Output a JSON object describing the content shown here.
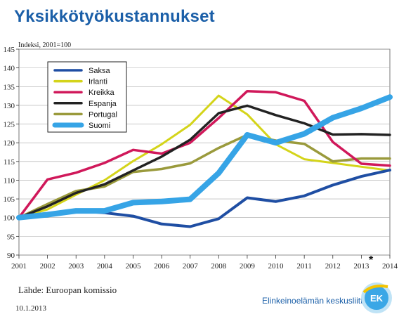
{
  "header": {
    "title": "Yksikkötyökustannukset"
  },
  "footer": {
    "source": "Lähde: Euroopan komissio",
    "date": "10.1.2013",
    "organization": "Elinkeinoelämän keskusliitto",
    "logo_text": "EK",
    "forecast_marker": "*"
  },
  "colors": {
    "title": "#1b5fa8",
    "saksa": "#1f4ea3",
    "irlanti": "#d4d41a",
    "kreikka": "#d0185a",
    "espanja": "#222222",
    "portugal": "#9a9a3c",
    "suomi": "#36a4e6"
  },
  "chart_data": {
    "type": "line",
    "title": "Yksikkötyökustannukset",
    "ylabel": "Indeksi, 2001=100",
    "xlabel": "",
    "ylim": [
      90,
      145
    ],
    "yticks": [
      90,
      95,
      100,
      105,
      110,
      115,
      120,
      125,
      130,
      135,
      140,
      145
    ],
    "grid": true,
    "legend_position": "top-left",
    "x": [
      "2001",
      "2002",
      "2003",
      "2004",
      "2005",
      "2006",
      "2007",
      "2008",
      "2009",
      "2010",
      "2011",
      "2012",
      "2013",
      "2014"
    ],
    "series": [
      {
        "name": "Saksa",
        "color": "#1f4ea3",
        "values": [
          100,
          100.8,
          101.8,
          101.3,
          100.4,
          98.3,
          97.6,
          99.7,
          105.3,
          104.3,
          105.8,
          108.7,
          111.0,
          112.7
        ]
      },
      {
        "name": "Irlanti",
        "color": "#d4d41a",
        "values": [
          100,
          102.2,
          106.1,
          110.0,
          115.1,
          119.6,
          124.8,
          132.6,
          127.6,
          119.6,
          115.6,
          114.6,
          113.6,
          112.6
        ]
      },
      {
        "name": "Kreikka",
        "color": "#d0185a",
        "values": [
          100,
          110.2,
          112.0,
          114.6,
          118.1,
          117.1,
          120.0,
          126.6,
          133.8,
          133.5,
          131.2,
          120.2,
          114.4,
          113.9
        ]
      },
      {
        "name": "Espanja",
        "color": "#222222",
        "values": [
          100,
          103.0,
          106.6,
          108.9,
          112.6,
          116.3,
          120.8,
          127.9,
          129.9,
          127.4,
          125.2,
          122.2,
          122.3,
          122.1
        ]
      },
      {
        "name": "Portugal",
        "color": "#9a9a3c",
        "values": [
          100,
          103.6,
          107.1,
          108.3,
          112.2,
          113.0,
          114.5,
          118.6,
          122.1,
          120.6,
          119.7,
          115.0,
          115.8,
          115.8
        ]
      },
      {
        "name": "Suomi",
        "color": "#36a4e6",
        "values": [
          100,
          100.8,
          101.8,
          101.8,
          104.0,
          104.3,
          104.9,
          111.9,
          122.1,
          120.0,
          122.4,
          126.7,
          129.2,
          132.2
        ]
      }
    ]
  }
}
